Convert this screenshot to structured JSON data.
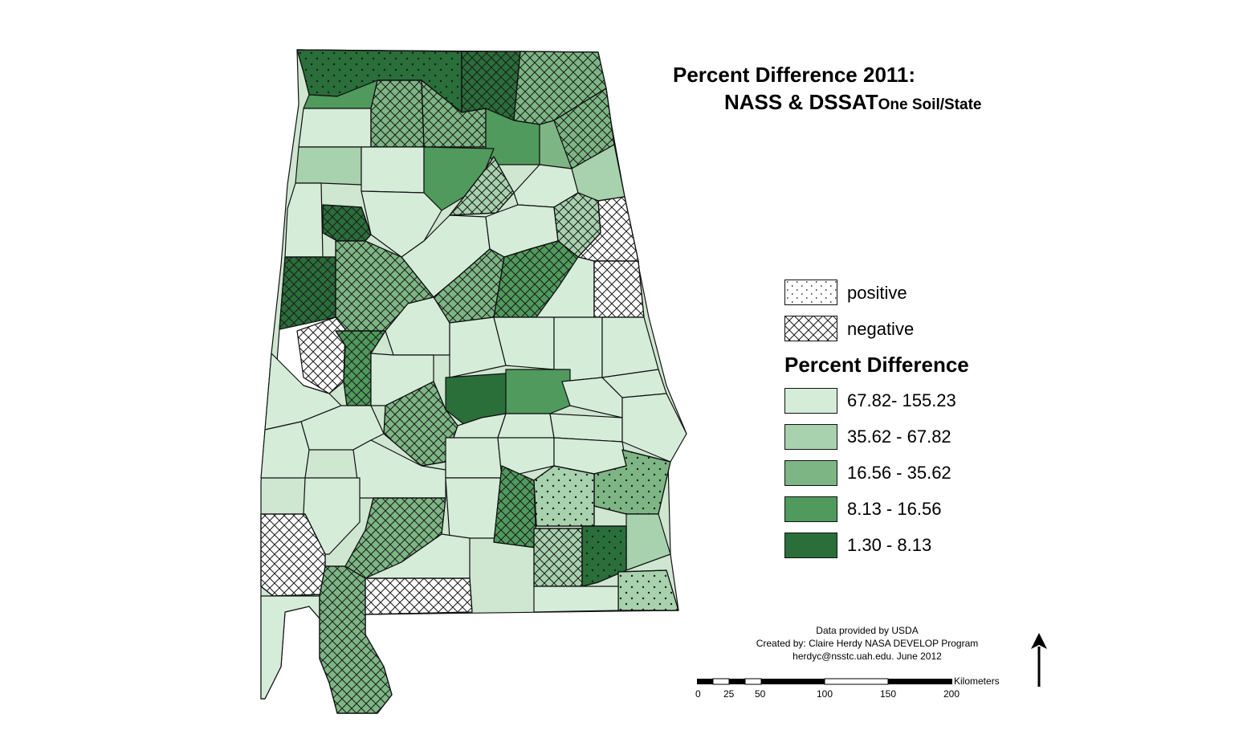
{
  "title": {
    "line1": "Percent Difference 2011:",
    "line2": "NASS & DSSAT",
    "line2_suffix": "One Soil/State"
  },
  "pattern_legend": [
    {
      "label": "positive",
      "pattern": "dots"
    },
    {
      "label": "negative",
      "pattern": "crosshatch"
    }
  ],
  "class_legend": {
    "heading": "Percent Difference",
    "classes": [
      {
        "label": "67.82- 155.23",
        "color": "#d5ecd9"
      },
      {
        "label": "35.62 - 67.82",
        "color": "#a8d1ae"
      },
      {
        "label": "16.56 - 35.62",
        "color": "#7db684"
      },
      {
        "label": "8.13 - 16.56",
        "color": "#4f9a5c"
      },
      {
        "label": "1.30 - 8.13",
        "color": "#2a6e3a"
      }
    ]
  },
  "credits": {
    "line1": "Data provided by USDA",
    "line2": "Created by: Claire Herdy NASA DEVELOP Program",
    "line3": "herdyc@nsstc.uah.edu. June 2012"
  },
  "scale_bar": {
    "unit": "Kilometers",
    "ticks": [
      "0",
      "25",
      "50",
      "100",
      "150",
      "200"
    ]
  },
  "north_arrow": {
    "icon": "north-arrow-icon"
  }
}
